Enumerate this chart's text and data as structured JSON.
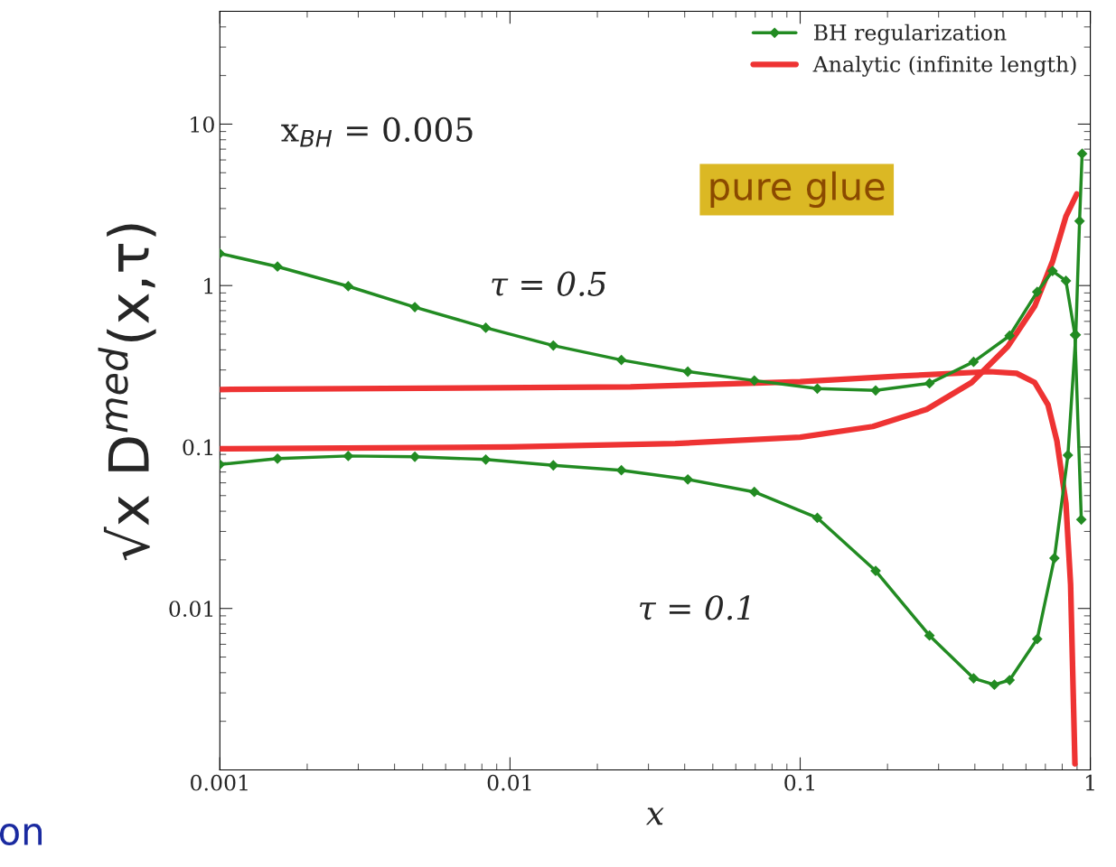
{
  "chart_data": {
    "type": "line",
    "xlabel": "x",
    "ylabel": "√x D$^{med}$(x,τ)",
    "log": "xy",
    "xlim": [
      0.001,
      1
    ],
    "ylim": [
      0.001,
      50
    ],
    "xticks": [
      0.001,
      0.01,
      0.1,
      1
    ],
    "yticks": [
      0.01,
      0.1,
      1,
      10
    ],
    "grid": false,
    "legend": "top right",
    "line_style": "solid",
    "series": [
      {
        "name": "BH regularization",
        "color": "#228b22",
        "marker": "diamond",
        "x": [
          0.001,
          0.00158,
          0.00277,
          0.0047,
          0.00825,
          0.0141,
          0.0242,
          0.041,
          0.0695,
          0.1146,
          0.182,
          0.279,
          0.396,
          0.527,
          0.656,
          0.741,
          0.824,
          0.885,
          0.931
        ],
        "values": [
          1.58,
          1.31,
          0.99,
          0.735,
          0.548,
          0.425,
          0.346,
          0.293,
          0.258,
          0.23,
          0.224,
          0.248,
          0.337,
          0.489,
          0.914,
          1.23,
          1.07,
          0.495,
          0.0355
        ]
      },
      {
        "color": "#228b22",
        "marker": "diamond",
        "x": [
          0.001,
          0.00158,
          0.00277,
          0.0047,
          0.00825,
          0.0141,
          0.0242,
          0.041,
          0.0695,
          0.1146,
          0.182,
          0.279,
          0.396,
          0.467,
          0.527,
          0.656,
          0.752,
          0.837,
          0.891,
          0.918,
          0.937
        ],
        "values": [
          0.078,
          0.0847,
          0.088,
          0.087,
          0.0837,
          0.077,
          0.0718,
          0.063,
          0.0527,
          0.0364,
          0.0171,
          0.0068,
          0.00369,
          0.00337,
          0.0036,
          0.00647,
          0.0205,
          0.089,
          0.495,
          2.51,
          6.56
        ]
      },
      {
        "name": "Analytic (infinite length)",
        "color": "#ee3333",
        "marker": "none",
        "x": [
          0.001,
          0.026,
          0.1,
          0.221,
          0.45,
          0.557,
          0.643,
          0.715,
          0.767,
          0.824,
          0.855,
          0.885
        ],
        "values": [
          0.227,
          0.236,
          0.254,
          0.275,
          0.293,
          0.286,
          0.251,
          0.182,
          0.109,
          0.0447,
          0.0141,
          0.00109
        ]
      },
      {
        "color": "#ee3333",
        "marker": "none",
        "x": [
          0.001,
          0.01,
          0.0371,
          0.1,
          0.178,
          0.273,
          0.39,
          0.519,
          0.643,
          0.741,
          0.824,
          0.898
        ],
        "values": [
          0.0975,
          0.1,
          0.105,
          0.115,
          0.134,
          0.171,
          0.251,
          0.419,
          0.745,
          1.41,
          2.68,
          3.69
        ]
      }
    ],
    "annotations": [
      "τ = 0.5",
      "τ = 0.1",
      "x$_{BH}$ = 0.005",
      "pure glue",
      "on"
    ]
  }
}
